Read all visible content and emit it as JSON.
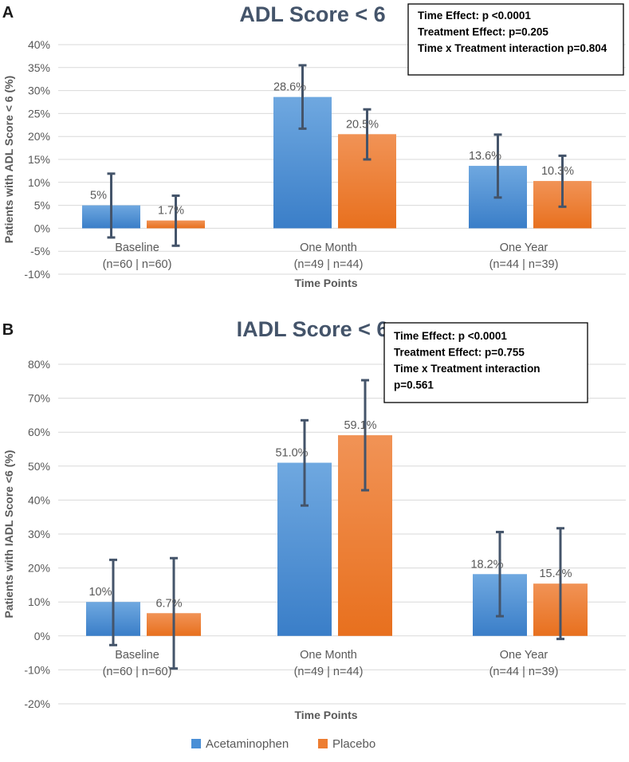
{
  "colors": {
    "acetaminophen": "#4a8fd6",
    "placebo": "#ed7d31",
    "title": "#44546a",
    "errorbar": "#44546a",
    "grid": "#d9d9d9"
  },
  "legend": {
    "items": [
      {
        "label": "Acetaminophen",
        "color": "#4a8fd6"
      },
      {
        "label": "Placebo",
        "color": "#ed7d31"
      }
    ]
  },
  "chart_data": [
    {
      "panel": "A",
      "type": "bar",
      "title": "ADL Score < 6",
      "xlabel": "Time Points",
      "ylabel": "Patients with ADL Score < 6 (%)",
      "ylim": [
        -10,
        40
      ],
      "yticks": [
        40,
        35,
        30,
        25,
        20,
        15,
        10,
        5,
        0,
        -5,
        -10
      ],
      "ytick_labels": [
        "40%",
        "35%",
        "30%",
        "25%",
        "20%",
        "15%",
        "10%",
        "5%",
        "0%",
        "-5%",
        "-10%"
      ],
      "categories": [
        {
          "line1": "Baseline",
          "line2": "(n=60 | n=60)"
        },
        {
          "line1": "One Month",
          "line2": "(n=49 | n=44)"
        },
        {
          "line1": "One Year",
          "line2": "(n=44 | n=39)"
        }
      ],
      "series": [
        {
          "name": "Acetaminophen",
          "values": [
            5,
            28.6,
            13.6
          ],
          "labels": [
            "5%",
            "28.6%",
            "13.6%"
          ],
          "err_low": [
            -2,
            21.7,
            6.7
          ],
          "err_high": [
            11.9,
            35.5,
            20.4
          ]
        },
        {
          "name": "Placebo",
          "values": [
            1.7,
            20.5,
            10.3
          ],
          "labels": [
            "1.7%",
            "20.5%",
            "10.3%"
          ],
          "err_low": [
            -3.8,
            15,
            4.7
          ],
          "err_high": [
            7.1,
            25.9,
            15.8
          ]
        }
      ],
      "stats": [
        "Time Effect: p <0.0001",
        "Treatment Effect: p=0.205",
        "Time x Treatment interaction p=0.804"
      ]
    },
    {
      "panel": "B",
      "type": "bar",
      "title": "IADL Score < 6",
      "xlabel": "Time Points",
      "ylabel": "Patients with IADL Score <6 (%)",
      "ylim": [
        -20,
        80
      ],
      "yticks": [
        80,
        70,
        60,
        50,
        40,
        30,
        20,
        10,
        0,
        -10,
        -20
      ],
      "ytick_labels": [
        "80%",
        "70%",
        "60%",
        "50%",
        "40%",
        "30%",
        "20%",
        "10%",
        "0%",
        "-10%",
        "-20%"
      ],
      "categories": [
        {
          "line1": "Baseline",
          "line2": "(n=60 | n=60)"
        },
        {
          "line1": "One Month",
          "line2": "(n=49 | n=44)"
        },
        {
          "line1": "One Year",
          "line2": "(n=44 | n=39)"
        }
      ],
      "series": [
        {
          "name": "Acetaminophen",
          "values": [
            10,
            51.0,
            18.2
          ],
          "labels": [
            "10%",
            "51.0%",
            "18.2%"
          ],
          "err_low": [
            -2.7,
            38.4,
            5.8
          ],
          "err_high": [
            22.4,
            63.5,
            30.6
          ]
        },
        {
          "name": "Placebo",
          "values": [
            6.7,
            59.1,
            15.4
          ],
          "labels": [
            "6.7%",
            "59.1%",
            "15.4%"
          ],
          "err_low": [
            -9.6,
            42.9,
            -0.9
          ],
          "err_high": [
            22.9,
            75.3,
            31.7
          ]
        }
      ],
      "stats": [
        "Time Effect: p <0.0001",
        "Treatment Effect: p=0.755",
        "Time x Treatment interaction",
        "p=0.561"
      ]
    }
  ]
}
